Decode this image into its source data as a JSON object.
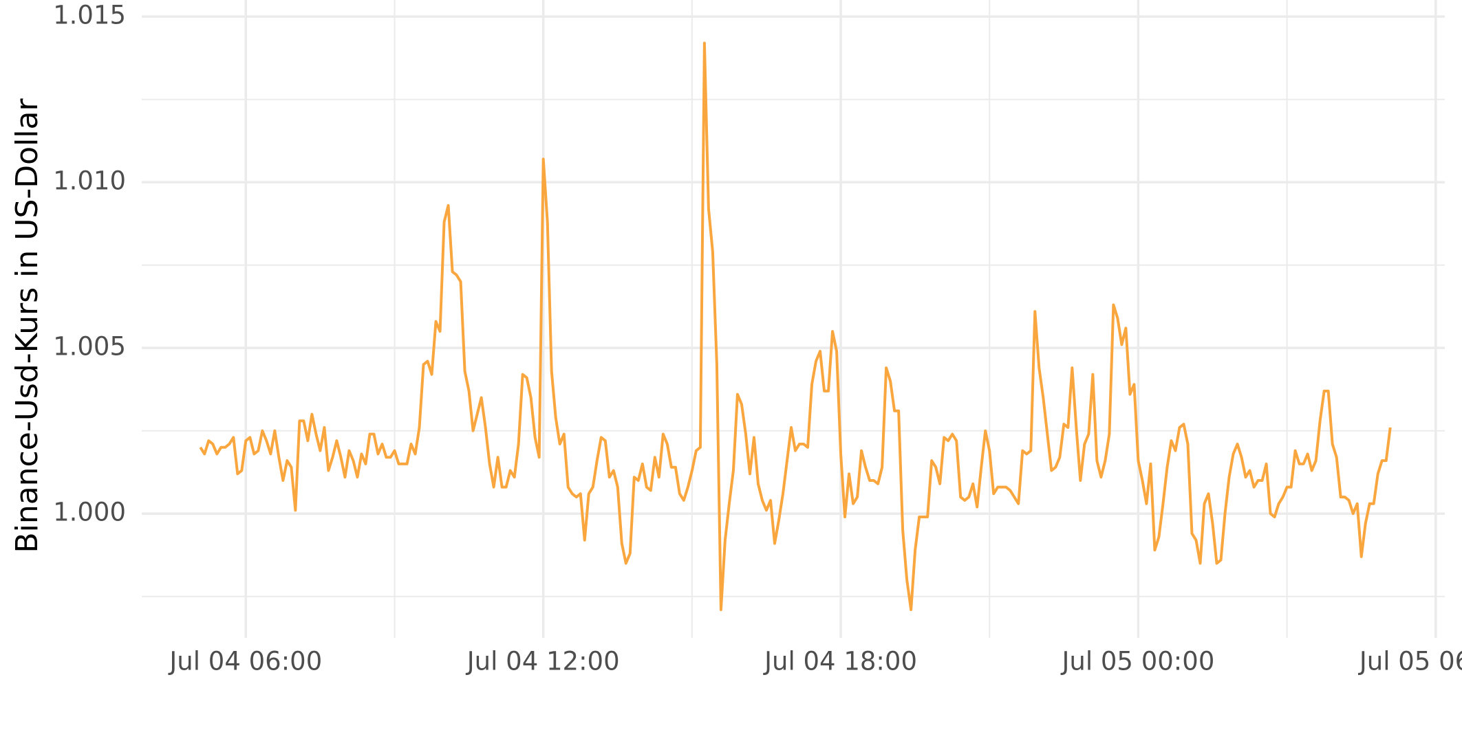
{
  "chart_data": {
    "type": "line",
    "y_label": "Binance-Usd-Kurs in US-Dollar",
    "grid": true,
    "xlim": [
      "Jul 04 03:54",
      "Jul 05 06:11"
    ],
    "xticks": [
      "Jul 04 06:00",
      "Jul 04 12:00",
      "Jul 04 18:00",
      "Jul 05 00:00",
      "Jul 05 06:00"
    ],
    "ylim": [
      0.99625,
      1.0155
    ],
    "yticks": [
      {
        "value": 1,
        "label": "1.000"
      },
      1.005,
      {
        "value": 1.01,
        "label": "1.010"
      },
      1.015
    ],
    "x": [
      "Jul 04 05:05",
      "Jul 04 05:10",
      "Jul 04 05:15",
      "Jul 04 05:20",
      "Jul 04 05:25",
      "Jul 04 05:30",
      "Jul 04 05:35",
      "Jul 04 05:40",
      "Jul 04 05:45",
      "Jul 04 05:50",
      "Jul 04 05:55",
      "Jul 04 06:00",
      "Jul 04 06:05",
      "Jul 04 06:10",
      "Jul 04 06:15",
      "Jul 04 06:20",
      "Jul 04 06:25",
      "Jul 04 06:30",
      "Jul 04 06:35",
      "Jul 04 06:40",
      "Jul 04 06:45",
      "Jul 04 06:50",
      "Jul 04 06:55",
      "Jul 04 07:00",
      "Jul 04 07:05",
      "Jul 04 07:10",
      "Jul 04 07:15",
      "Jul 04 07:20",
      "Jul 04 07:25",
      "Jul 04 07:30",
      "Jul 04 07:35",
      "Jul 04 07:40",
      "Jul 04 07:45",
      "Jul 04 07:50",
      "Jul 04 07:55",
      "Jul 04 08:00",
      "Jul 04 08:05",
      "Jul 04 08:10",
      "Jul 04 08:15",
      "Jul 04 08:20",
      "Jul 04 08:25",
      "Jul 04 08:30",
      "Jul 04 08:35",
      "Jul 04 08:40",
      "Jul 04 08:45",
      "Jul 04 08:50",
      "Jul 04 08:55",
      "Jul 04 09:00",
      "Jul 04 09:05",
      "Jul 04 09:10",
      "Jul 04 09:15",
      "Jul 04 09:20",
      "Jul 04 09:25",
      "Jul 04 09:30",
      "Jul 04 09:35",
      "Jul 04 09:40",
      "Jul 04 09:45",
      "Jul 04 09:50",
      "Jul 04 09:55",
      "Jul 04 10:00",
      "Jul 04 10:05",
      "Jul 04 10:10",
      "Jul 04 10:15",
      "Jul 04 10:20",
      "Jul 04 10:25",
      "Jul 04 10:30",
      "Jul 04 10:35",
      "Jul 04 10:40",
      "Jul 04 10:45",
      "Jul 04 10:50",
      "Jul 04 10:55",
      "Jul 04 11:00",
      "Jul 04 11:05",
      "Jul 04 11:10",
      "Jul 04 11:15",
      "Jul 04 11:20",
      "Jul 04 11:25",
      "Jul 04 11:30",
      "Jul 04 11:35",
      "Jul 04 11:40",
      "Jul 04 11:45",
      "Jul 04 11:50",
      "Jul 04 11:55",
      "Jul 04 12:00",
      "Jul 04 12:05",
      "Jul 04 12:10",
      "Jul 04 12:15",
      "Jul 04 12:20",
      "Jul 04 12:25",
      "Jul 04 12:30",
      "Jul 04 12:35",
      "Jul 04 12:40",
      "Jul 04 12:45",
      "Jul 04 12:50",
      "Jul 04 12:55",
      "Jul 04 13:00",
      "Jul 04 13:05",
      "Jul 04 13:10",
      "Jul 04 13:15",
      "Jul 04 13:20",
      "Jul 04 13:25",
      "Jul 04 13:30",
      "Jul 04 13:35",
      "Jul 04 13:40",
      "Jul 04 13:45",
      "Jul 04 13:50",
      "Jul 04 13:55",
      "Jul 04 14:00",
      "Jul 04 14:05",
      "Jul 04 14:10",
      "Jul 04 14:15",
      "Jul 04 14:20",
      "Jul 04 14:25",
      "Jul 04 14:30",
      "Jul 04 14:35",
      "Jul 04 14:40",
      "Jul 04 14:45",
      "Jul 04 14:50",
      "Jul 04 14:55",
      "Jul 04 15:00",
      "Jul 04 15:05",
      "Jul 04 15:10",
      "Jul 04 15:15",
      "Jul 04 15:20",
      "Jul 04 15:25",
      "Jul 04 15:30",
      "Jul 04 15:35",
      "Jul 04 15:40",
      "Jul 04 15:45",
      "Jul 04 15:50",
      "Jul 04 15:55",
      "Jul 04 16:00",
      "Jul 04 16:05",
      "Jul 04 16:10",
      "Jul 04 16:15",
      "Jul 04 16:20",
      "Jul 04 16:25",
      "Jul 04 16:30",
      "Jul 04 16:35",
      "Jul 04 16:40",
      "Jul 04 16:45",
      "Jul 04 16:50",
      "Jul 04 16:55",
      "Jul 04 17:00",
      "Jul 04 17:05",
      "Jul 04 17:10",
      "Jul 04 17:15",
      "Jul 04 17:20",
      "Jul 04 17:25",
      "Jul 04 17:30",
      "Jul 04 17:35",
      "Jul 04 17:40",
      "Jul 04 17:45",
      "Jul 04 17:50",
      "Jul 04 17:55",
      "Jul 04 18:00",
      "Jul 04 18:05",
      "Jul 04 18:10",
      "Jul 04 18:15",
      "Jul 04 18:20",
      "Jul 04 18:25",
      "Jul 04 18:30",
      "Jul 04 18:35",
      "Jul 04 18:40",
      "Jul 04 18:45",
      "Jul 04 18:50",
      "Jul 04 18:55",
      "Jul 04 19:00",
      "Jul 04 19:05",
      "Jul 04 19:10",
      "Jul 04 19:15",
      "Jul 04 19:20",
      "Jul 04 19:25",
      "Jul 04 19:30",
      "Jul 04 19:35",
      "Jul 04 19:40",
      "Jul 04 19:45",
      "Jul 04 19:50",
      "Jul 04 19:55",
      "Jul 04 20:00",
      "Jul 04 20:05",
      "Jul 04 20:10",
      "Jul 04 20:15",
      "Jul 04 20:20",
      "Jul 04 20:25",
      "Jul 04 20:30",
      "Jul 04 20:35",
      "Jul 04 20:40",
      "Jul 04 20:45",
      "Jul 04 20:50",
      "Jul 04 20:55",
      "Jul 04 21:00",
      "Jul 04 21:05",
      "Jul 04 21:10",
      "Jul 04 21:15",
      "Jul 04 21:20",
      "Jul 04 21:25",
      "Jul 04 21:30",
      "Jul 04 21:35",
      "Jul 04 21:40",
      "Jul 04 21:45",
      "Jul 04 21:50",
      "Jul 04 21:55",
      "Jul 04 22:00",
      "Jul 04 22:05",
      "Jul 04 22:10",
      "Jul 04 22:15",
      "Jul 04 22:20",
      "Jul 04 22:25",
      "Jul 04 22:30",
      "Jul 04 22:35",
      "Jul 04 22:40",
      "Jul 04 22:45",
      "Jul 04 22:50",
      "Jul 04 22:55",
      "Jul 04 23:00",
      "Jul 04 23:05",
      "Jul 04 23:10",
      "Jul 04 23:15",
      "Jul 04 23:20",
      "Jul 04 23:25",
      "Jul 04 23:30",
      "Jul 04 23:35",
      "Jul 04 23:40",
      "Jul 04 23:45",
      "Jul 04 23:50",
      "Jul 04 23:55",
      "Jul 05 00:00",
      "Jul 05 00:05",
      "Jul 05 00:10",
      "Jul 05 00:15",
      "Jul 05 00:20",
      "Jul 05 00:25",
      "Jul 05 00:30",
      "Jul 05 00:35",
      "Jul 05 00:40",
      "Jul 05 00:45",
      "Jul 05 00:50",
      "Jul 05 00:55",
      "Jul 05 01:00",
      "Jul 05 01:05",
      "Jul 05 01:10",
      "Jul 05 01:15",
      "Jul 05 01:20",
      "Jul 05 01:25",
      "Jul 05 01:30",
      "Jul 05 01:35",
      "Jul 05 01:40",
      "Jul 05 01:45",
      "Jul 05 01:50",
      "Jul 05 01:55",
      "Jul 05 02:00",
      "Jul 05 02:05",
      "Jul 05 02:10",
      "Jul 05 02:15",
      "Jul 05 02:20",
      "Jul 05 02:25",
      "Jul 05 02:30",
      "Jul 05 02:35",
      "Jul 05 02:40",
      "Jul 05 02:45",
      "Jul 05 02:50",
      "Jul 05 02:55",
      "Jul 05 03:00",
      "Jul 05 03:05",
      "Jul 05 03:10",
      "Jul 05 03:15",
      "Jul 05 03:20",
      "Jul 05 03:25",
      "Jul 05 03:30",
      "Jul 05 03:35",
      "Jul 05 03:40",
      "Jul 05 03:45",
      "Jul 05 03:50",
      "Jul 05 03:55",
      "Jul 05 04:00",
      "Jul 05 04:05",
      "Jul 05 04:10",
      "Jul 05 04:15",
      "Jul 05 04:20",
      "Jul 05 04:25",
      "Jul 05 04:30",
      "Jul 05 04:35",
      "Jul 05 04:40",
      "Jul 05 04:45",
      "Jul 05 04:50",
      "Jul 05 04:55",
      "Jul 05 05:00",
      "Jul 05 05:05"
    ],
    "color": "#f9a63e",
    "values": [
      1.002,
      1.0018,
      1.0022,
      1.0021,
      1.0018,
      1.002,
      1.002,
      1.0021,
      1.0023,
      1.0012,
      1.0013,
      1.0022,
      1.0023,
      1.0018,
      1.0019,
      1.0025,
      1.0022,
      1.0018,
      1.0025,
      1.0017,
      1.001,
      1.0016,
      1.0014,
      1.0001,
      1.0028,
      1.0028,
      1.0022,
      1.003,
      1.0024,
      1.0019,
      1.0026,
      1.0013,
      1.0017,
      1.0022,
      1.0017,
      1.0011,
      1.0019,
      1.0016,
      1.0011,
      1.0018,
      1.0015,
      1.0024,
      1.0024,
      1.0018,
      1.0021,
      1.0017,
      1.0017,
      1.0019,
      1.0015,
      1.0015,
      1.0015,
      1.0021,
      1.0018,
      1.0026,
      1.0045,
      1.0046,
      1.0042,
      1.0058,
      1.0055,
      1.0088,
      1.0093,
      1.0073,
      1.0072,
      1.007,
      1.0043,
      1.0037,
      1.0025,
      1.003,
      1.0035,
      1.0026,
      1.0015,
      1.0008,
      1.0017,
      1.0008,
      1.0008,
      1.0013,
      1.0011,
      1.0021,
      1.0042,
      1.0041,
      1.0035,
      1.0023,
      1.0017,
      1.0107,
      1.0088,
      1.0043,
      1.0029,
      1.0021,
      1.0024,
      1.0008,
      1.0006,
      1.0005,
      1.0006,
      0.9992,
      1.0006,
      1.0008,
      1.0016,
      1.0023,
      1.0022,
      1.0011,
      1.0013,
      1.0008,
      0.9991,
      0.9985,
      0.9988,
      1.0011,
      1.001,
      1.0015,
      1.0008,
      1.0007,
      1.0017,
      1.0011,
      1.0024,
      1.0021,
      1.0014,
      1.0014,
      1.0006,
      1.0004,
      1.0008,
      1.0013,
      1.0019,
      1.002,
      1.0142,
      1.0092,
      1.0079,
      1.0045,
      0.9971,
      0.9992,
      1.0003,
      1.0013,
      1.0036,
      1.0033,
      1.0024,
      1.0012,
      1.0023,
      1.0009,
      1.0004,
      1.0001,
      1.0004,
      0.9991,
      0.9998,
      1.0006,
      1.0016,
      1.0026,
      1.0019,
      1.0021,
      1.0021,
      1.002,
      1.0039,
      1.0046,
      1.0049,
      1.0037,
      1.0037,
      1.0055,
      1.0049,
      1.0018,
      0.9999,
      1.0012,
      1.0003,
      1.0005,
      1.0019,
      1.0014,
      1.001,
      1.001,
      1.0009,
      1.0014,
      1.0044,
      1.004,
      1.0031,
      1.0031,
      0.9995,
      0.998,
      0.9971,
      0.9989,
      0.9999,
      0.9999,
      0.9999,
      1.0016,
      1.0014,
      1.0009,
      1.0023,
      1.0022,
      1.0024,
      1.0022,
      1.0005,
      1.0004,
      1.0005,
      1.0009,
      1.0002,
      1.0014,
      1.0025,
      1.0019,
      1.0006,
      1.0008,
      1.0008,
      1.0008,
      1.0007,
      1.0005,
      1.0003,
      1.0019,
      1.0018,
      1.0019,
      1.0061,
      1.0044,
      1.0035,
      1.0024,
      1.0013,
      1.0014,
      1.0017,
      1.0027,
      1.0026,
      1.0044,
      1.0026,
      1.001,
      1.0021,
      1.0024,
      1.0042,
      1.0016,
      1.0011,
      1.0016,
      1.0024,
      1.0063,
      1.0059,
      1.0051,
      1.0056,
      1.0036,
      1.0039,
      1.0016,
      1.001,
      1.0003,
      1.0015,
      0.9989,
      0.9993,
      1.0003,
      1.0014,
      1.0022,
      1.0019,
      1.0026,
      1.0027,
      1.0021,
      0.9994,
      0.9992,
      0.9985,
      1.0003,
      1.0006,
      0.9997,
      0.9985,
      0.9986,
      1,
      1.0011,
      1.0018,
      1.0021,
      1.0017,
      1.0011,
      1.0013,
      1.0008,
      1.001,
      1.001,
      1.0015,
      1,
      0.9999,
      1.0003,
      1.0005,
      1.0008,
      1.0008,
      1.0019,
      1.0015,
      1.0015,
      1.0018,
      1.0013,
      1.0016,
      1.0028,
      1.0037,
      1.0037,
      1.0021,
      1.0017,
      1.0005,
      1.0005,
      1.0004,
      1,
      1.0003,
      0.9987,
      0.9997,
      1.0003,
      1.0003,
      1.0012,
      1.0016,
      1.0016,
      1.0026
    ]
  }
}
